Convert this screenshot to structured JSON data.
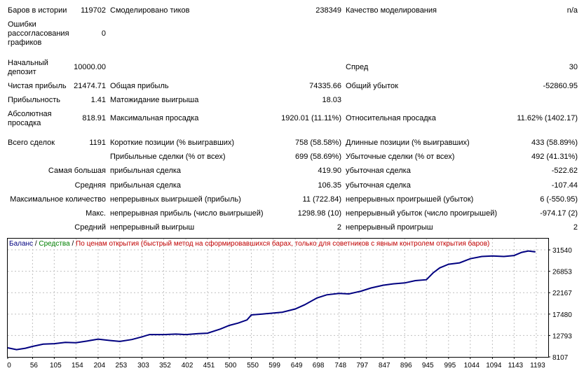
{
  "stats": {
    "bars_label": "Баров в истории",
    "bars_value": "119702",
    "ticks_label": "Смоделировано тиков",
    "ticks_value": "238349",
    "quality_label": "Качество моделирования",
    "quality_value": "n/a",
    "mismatch_label": "Ошибки рассогласования графиков",
    "mismatch_value": "0",
    "deposit_label": "Начальный депозит",
    "deposit_value": "10000.00",
    "spread_label": "Спред",
    "spread_value": "30",
    "net_profit_label": "Чистая прибыль",
    "net_profit_value": "21474.71",
    "gross_profit_label": "Общая прибыль",
    "gross_profit_value": "74335.66",
    "gross_loss_label": "Общий убыток",
    "gross_loss_value": "-52860.95",
    "profit_factor_label": "Прибыльность",
    "profit_factor_value": "1.41",
    "expected_payoff_label": "Матожидание выигрыша",
    "expected_payoff_value": "18.03",
    "abs_dd_label": "Абсолютная просадка",
    "abs_dd_value": "818.91",
    "max_dd_label": "Максимальная просадка",
    "max_dd_value": "1920.01 (11.11%)",
    "rel_dd_label": "Относительная просадка",
    "rel_dd_value": "11.62% (1402.17)",
    "total_trades_label": "Всего сделок",
    "total_trades_value": "1191",
    "short_label": "Короткие позиции (% выигравших)",
    "short_value": "758 (58.58%)",
    "long_label": "Длинные позиции (% выигравших)",
    "long_value": "433 (58.89%)",
    "profit_trades_label": "Прибыльные сделки (% от всех)",
    "profit_trades_value": "699 (58.69%)",
    "loss_trades_label": "Убыточные сделки (% от всех)",
    "loss_trades_value": "492 (41.31%)",
    "largest_label": "Самая большая",
    "largest_profit_label": "прибыльная сделка",
    "largest_profit_value": "419.90",
    "largest_loss_label": "убыточная сделка",
    "largest_loss_value": "-522.62",
    "average_label": "Средняя",
    "average_profit_label": "прибыльная сделка",
    "average_profit_value": "106.35",
    "average_loss_label": "убыточная сделка",
    "average_loss_value": "-107.44",
    "max_count_label": "Максимальное количество",
    "consec_wins_label": "непрерывных выигрышей (прибыль)",
    "consec_wins_value": "11 (722.84)",
    "consec_losses_label": "непрерывных проигрышей (убыток)",
    "consec_losses_value": "6 (-550.95)",
    "max_label": "Макс.",
    "consec_profit_label": "непрерывная прибыль (число выигрышей)",
    "consec_profit_value": "1298.98 (10)",
    "consec_loss_label": "непрерывный убыток (число проигрышей)",
    "consec_loss_value": "-974.17 (2)",
    "avg_label": "Средний",
    "avg_wins_label": "непрерывный выигрыш",
    "avg_wins_value": "2",
    "avg_losses_label": "непрерывный проигрыш",
    "avg_losses_value": "2"
  },
  "chart_legend": {
    "balance": "Баланс",
    "sep1": " / ",
    "equity": "Средства",
    "sep2": " / ",
    "mode": "По ценам открытия (быстрый метод на сформировавшихся барах, только для советников с явным контролем открытия баров)"
  },
  "colors": {
    "balance": "#000080",
    "equity": "#008000",
    "mode": "#c00000",
    "grid": "#c0c0c0"
  },
  "chart_data": {
    "type": "line",
    "x_ticks": [
      0,
      56,
      105,
      154,
      204,
      253,
      303,
      352,
      402,
      451,
      500,
      550,
      599,
      649,
      698,
      748,
      797,
      847,
      896,
      945,
      995,
      1044,
      1094,
      1143,
      1193
    ],
    "y_ticks": [
      8107,
      12793,
      17480,
      22167,
      26853,
      31540
    ],
    "xlim": [
      0,
      1220
    ],
    "ylim": [
      8107,
      34000
    ],
    "series": [
      {
        "name": "Баланс",
        "x": [
          0,
          20,
          40,
          56,
          80,
          105,
          130,
          154,
          180,
          204,
          230,
          253,
          280,
          303,
          320,
          352,
          380,
          402,
          430,
          451,
          480,
          500,
          520,
          540,
          550,
          575,
          599,
          620,
          649,
          670,
          698,
          720,
          748,
          770,
          797,
          820,
          847,
          870,
          896,
          920,
          945,
          960,
          975,
          995,
          1020,
          1044,
          1070,
          1094,
          1120,
          1143,
          1160,
          1175,
          1191
        ],
        "y": [
          10100,
          9700,
          10000,
          10400,
          10900,
          11000,
          11300,
          11200,
          11600,
          12000,
          11700,
          11500,
          11900,
          12500,
          13000,
          13000,
          13100,
          13000,
          13200,
          13300,
          14200,
          15000,
          15500,
          16200,
          17300,
          17500,
          17700,
          17900,
          18600,
          19500,
          21000,
          21700,
          22000,
          21900,
          22500,
          23200,
          23800,
          24100,
          24300,
          24800,
          25000,
          26500,
          27600,
          28400,
          28700,
          29600,
          30100,
          30200,
          30100,
          30300,
          31000,
          31300,
          31100
        ]
      }
    ]
  }
}
